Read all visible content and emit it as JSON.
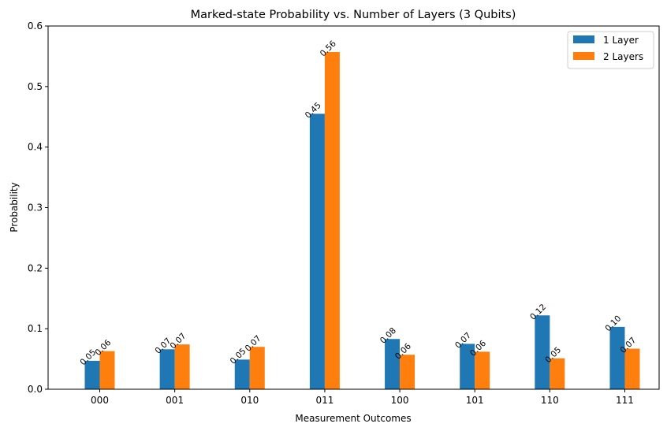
{
  "chart_data": {
    "type": "bar",
    "title": "Marked-state Probability vs. Number of Layers (3 Qubits)",
    "xlabel": "Measurement Outcomes",
    "ylabel": "Probability",
    "ylim": [
      0,
      0.6
    ],
    "yticks": [
      "0.0",
      "0.1",
      "0.2",
      "0.3",
      "0.4",
      "0.5",
      "0.6"
    ],
    "categories": [
      "000",
      "001",
      "010",
      "011",
      "100",
      "101",
      "110",
      "111"
    ],
    "grid": false,
    "legend_position": "top-right",
    "series": [
      {
        "name": "1 Layer",
        "color": "#1f77b4",
        "values": [
          0.047,
          0.066,
          0.049,
          0.455,
          0.083,
          0.075,
          0.122,
          0.103
        ],
        "labels": [
          "0.05",
          "0.07",
          "0.05",
          "0.45",
          "0.08",
          "0.07",
          "0.12",
          "0.10"
        ]
      },
      {
        "name": "2 Layers",
        "color": "#ff7f0e",
        "values": [
          0.063,
          0.074,
          0.07,
          0.557,
          0.057,
          0.062,
          0.051,
          0.067
        ],
        "labels": [
          "0.06",
          "0.07",
          "0.07",
          "0.56",
          "0.06",
          "0.06",
          "0.05",
          "0.07"
        ]
      }
    ]
  }
}
